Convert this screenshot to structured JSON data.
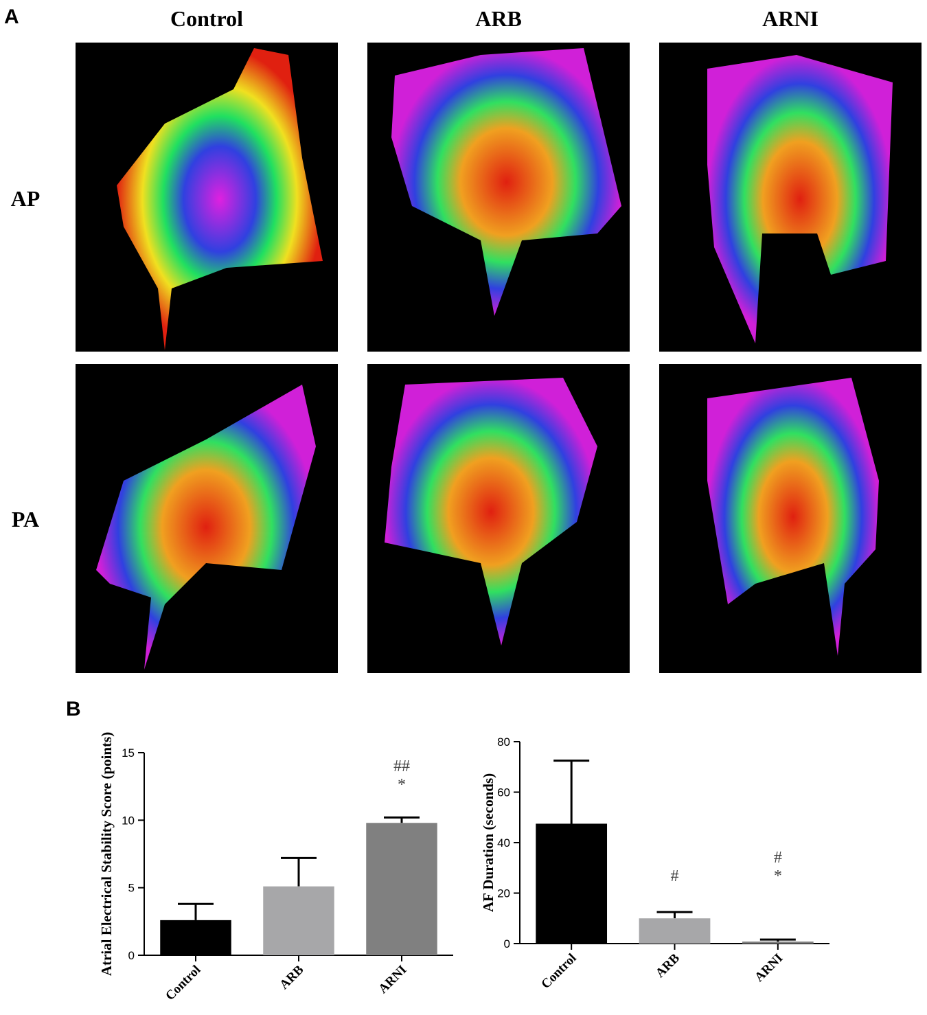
{
  "panel_a": {
    "label": "A",
    "columns": [
      "Control",
      "ARB",
      "ARNI"
    ],
    "rows": [
      "AP",
      "PA"
    ]
  },
  "panel_b_label": "B",
  "chart_data": [
    {
      "type": "bar",
      "ylabel": "Atrial Electrical Stability Score (points)",
      "categories": [
        "Control",
        "ARB",
        "ARNI"
      ],
      "values": [
        2.6,
        5.1,
        9.8
      ],
      "errors": [
        1.2,
        2.1,
        0.4
      ],
      "colors": [
        "#000000",
        "#a7a7a9",
        "#808080"
      ],
      "ylim": [
        0,
        15
      ],
      "yticks": [
        0,
        5,
        10,
        15
      ],
      "annotations": [
        null,
        null,
        [
          "##",
          "*"
        ]
      ]
    },
    {
      "type": "bar",
      "ylabel": "AF Duration (seconds)",
      "categories": [
        "Control",
        "ARB",
        "ARNI"
      ],
      "values": [
        47.5,
        10,
        0.8
      ],
      "errors": [
        25,
        2.5,
        0.8
      ],
      "colors": [
        "#000000",
        "#a7a7a9",
        "#808080"
      ],
      "ylim": [
        0,
        80
      ],
      "yticks": [
        0,
        20,
        40,
        60,
        80
      ],
      "annotations": [
        null,
        [
          "#"
        ],
        [
          "#",
          "*"
        ]
      ]
    }
  ]
}
